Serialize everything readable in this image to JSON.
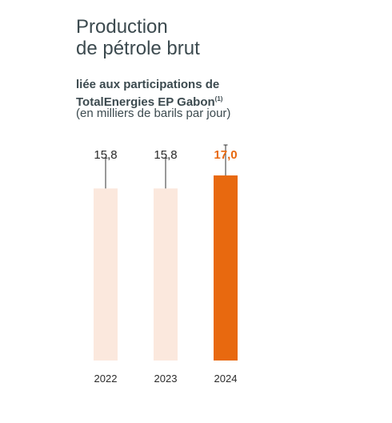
{
  "title_line1": "Production",
  "title_line2": "de pétrole brut",
  "subtitle_line1": "liée aux participations de",
  "subtitle_line2": "TotalEnergies EP Gabon",
  "subtitle_note": "(1)",
  "unit": "(en milliers de barils par jour)",
  "colors": {
    "text": "#3c4a4f",
    "bar_light": "#fbe8dd",
    "bar_highlight": "#e8690f",
    "error_bar": "#333333"
  },
  "chart_data": {
    "type": "bar",
    "categories": [
      "2022",
      "2023",
      "2024"
    ],
    "values": [
      15.8,
      15.8,
      17.0
    ],
    "value_labels": [
      "15,8",
      "15,8",
      "17,0"
    ],
    "highlight": [
      false,
      false,
      true
    ],
    "title": "Production de pétrole brut",
    "subtitle": "liée aux participations de TotalEnergies EP Gabon(1)",
    "ylabel": "(en milliers de barils par jour)",
    "xlabel": "",
    "ylim": [
      0,
      19.5
    ],
    "grid": false,
    "legend": "none"
  }
}
